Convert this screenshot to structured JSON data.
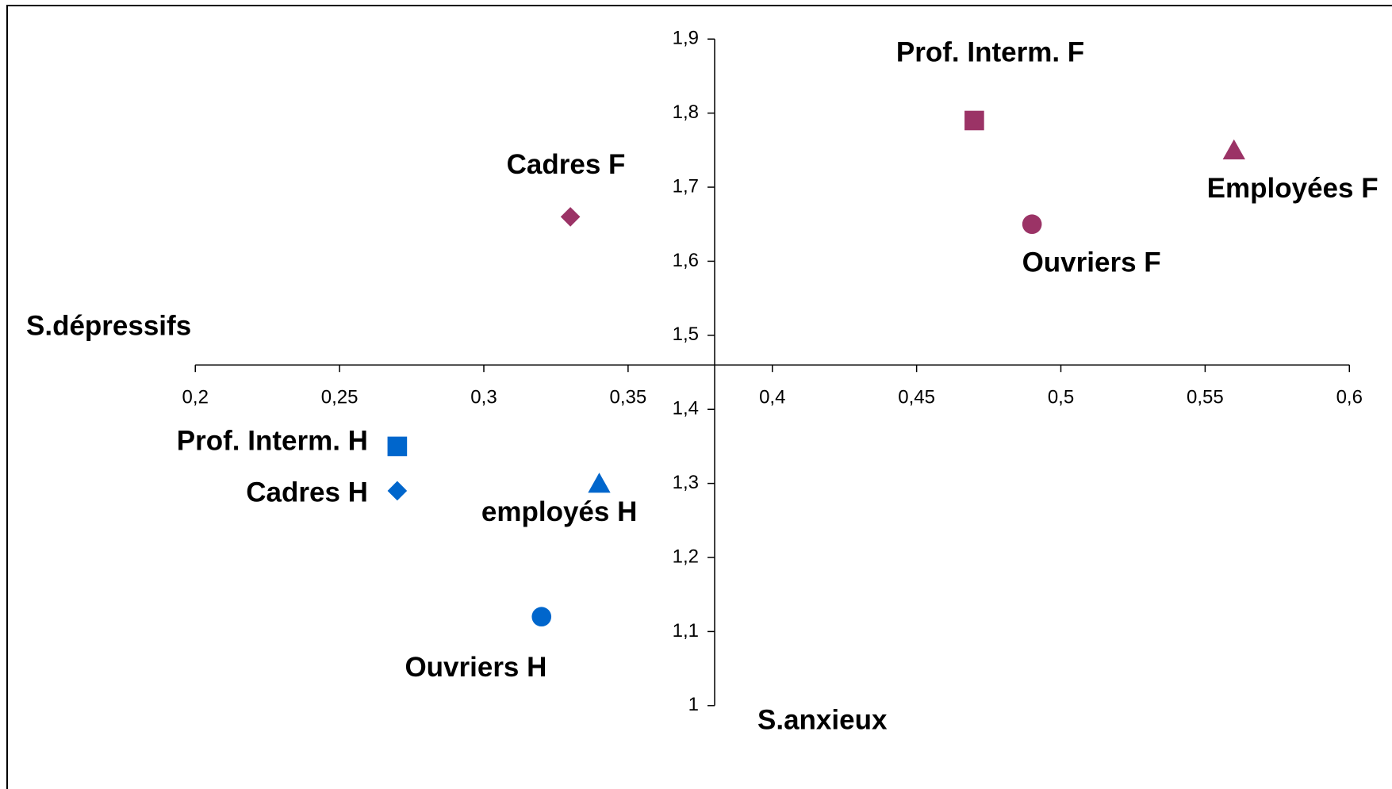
{
  "chart_data": {
    "type": "scatter",
    "x_label": "S.anxieux",
    "y_label": "S.dépressifs",
    "xlim": [
      0.2,
      0.6
    ],
    "xticks": [
      {
        "value": 0.2,
        "label": "0,2"
      },
      {
        "value": 0.25,
        "label": "0,25"
      },
      {
        "value": 0.3,
        "label": "0,3"
      },
      {
        "value": 0.35,
        "label": "0,35"
      },
      {
        "value": 0.4,
        "label": "0,4"
      },
      {
        "value": 0.45,
        "label": "0,45"
      },
      {
        "value": 0.5,
        "label": "0,5"
      },
      {
        "value": 0.55,
        "label": "0,55"
      },
      {
        "value": 0.6,
        "label": "0,6"
      }
    ],
    "ylim": [
      1,
      1.9
    ],
    "yticks": [
      1,
      {
        "value": 1.1,
        "label": "1,1"
      },
      {
        "value": 1.2,
        "label": "1,2"
      },
      {
        "value": 1.3,
        "label": "1,3"
      },
      {
        "value": 1.4,
        "label": "1,4"
      },
      {
        "value": 1.5,
        "label": "1,5"
      },
      {
        "value": 1.6,
        "label": "1,6"
      },
      {
        "value": 1.7,
        "label": "1,7"
      },
      {
        "value": 1.8,
        "label": "1,8"
      },
      {
        "value": 1.9,
        "label": "1,9"
      }
    ],
    "x_axis_crosses_y": 1.46,
    "y_axis_crosses_x": 0.38,
    "series": [
      {
        "name": "Prof. Interm. F",
        "color": "#9b3366",
        "marker": "square",
        "x": [
          0.47
        ],
        "values": [
          1.79
        ]
      },
      {
        "name": "Employées F",
        "color": "#9b3366",
        "marker": "triangle",
        "x": [
          0.56
        ],
        "values": [
          1.75
        ]
      },
      {
        "name": "Ouvriers F",
        "color": "#9b3366",
        "marker": "circle",
        "x": [
          0.49
        ],
        "values": [
          1.65
        ]
      },
      {
        "name": "Cadres F",
        "color": "#9b3366",
        "marker": "diamond",
        "x": [
          0.33
        ],
        "values": [
          1.66
        ]
      },
      {
        "name": "Prof. Interm. H",
        "color": "#0066cc",
        "marker": "square",
        "x": [
          0.27
        ],
        "values": [
          1.35
        ]
      },
      {
        "name": "Cadres H",
        "color": "#0066cc",
        "marker": "diamond",
        "x": [
          0.27
        ],
        "values": [
          1.29
        ]
      },
      {
        "name": "employés H",
        "color": "#0066cc",
        "marker": "triangle",
        "x": [
          0.34
        ],
        "values": [
          1.3
        ]
      },
      {
        "name": "Ouvriers H",
        "color": "#0066cc",
        "marker": "circle",
        "x": [
          0.32
        ],
        "values": [
          1.12
        ]
      }
    ]
  }
}
